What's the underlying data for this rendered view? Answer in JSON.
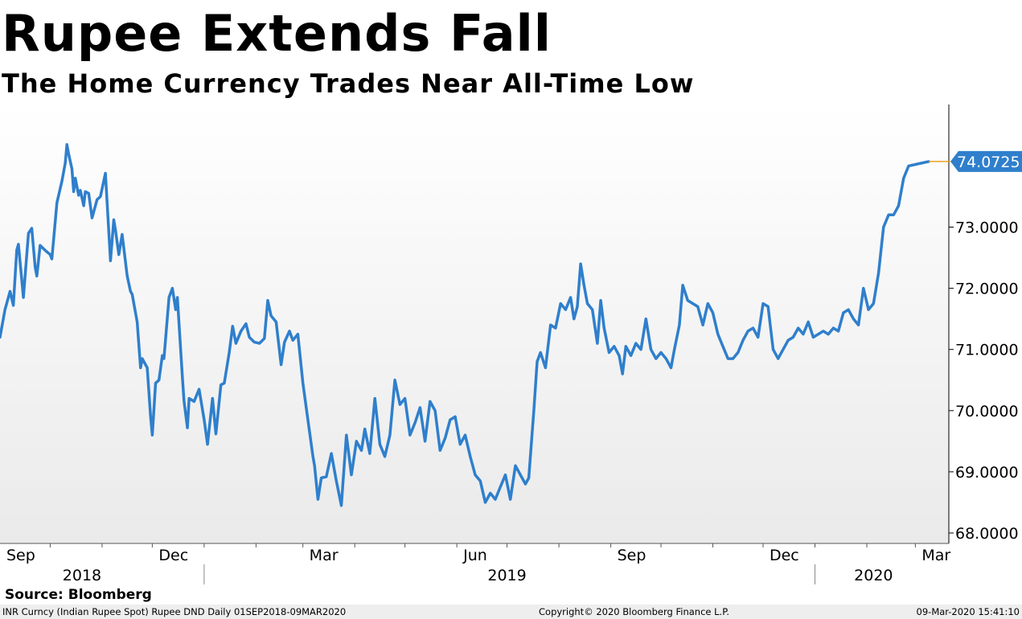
{
  "chart_data": {
    "type": "line",
    "title": "Rupee Extends Fall",
    "subtitle": "The Home Currency Trades Near All-Time Low",
    "ylim": [
      68.0,
      75.0
    ],
    "xlim": [
      "2018-09-01",
      "2020-03-09"
    ],
    "y_ticks": [
      "68.0000",
      "69.0000",
      "70.0000",
      "71.0000",
      "72.0000",
      "73.0000"
    ],
    "x_month_ticks": [
      {
        "date": "2018-09-01",
        "label": "Sep"
      },
      {
        "date": "2018-12-01",
        "label": "Dec"
      },
      {
        "date": "2019-03-01",
        "label": "Mar"
      },
      {
        "date": "2019-06-01",
        "label": "Jun"
      },
      {
        "date": "2019-09-01",
        "label": "Sep"
      },
      {
        "date": "2019-12-01",
        "label": "Dec"
      },
      {
        "date": "2020-03-01",
        "label": "Mar"
      }
    ],
    "year_labels": [
      {
        "label": "2018",
        "mid": "2018-10-20"
      },
      {
        "label": "2019",
        "mid": "2019-07-01"
      },
      {
        "label": "2020",
        "mid": "2020-02-05"
      }
    ],
    "year_separators": [
      "2019-01-01",
      "2020-01-01"
    ],
    "last_value": 74.0725,
    "last_value_label": "74.0725",
    "line_color": "#2f7fcc",
    "series": [
      {
        "points": [
          [
            "2018-09-01",
            71.2
          ],
          [
            "2018-09-04",
            71.65
          ],
          [
            "2018-09-07",
            71.95
          ],
          [
            "2018-09-09",
            71.72
          ],
          [
            "2018-09-11",
            72.62
          ],
          [
            "2018-09-12",
            72.72
          ],
          [
            "2018-09-15",
            71.85
          ],
          [
            "2018-09-18",
            72.9
          ],
          [
            "2018-09-20",
            72.98
          ],
          [
            "2018-09-22",
            72.35
          ],
          [
            "2018-09-23",
            72.2
          ],
          [
            "2018-09-25",
            72.7
          ],
          [
            "2018-09-28",
            72.62
          ],
          [
            "2018-10-01",
            72.55
          ],
          [
            "2018-10-02",
            72.48
          ],
          [
            "2018-10-05",
            73.4
          ],
          [
            "2018-10-08",
            73.75
          ],
          [
            "2018-10-10",
            74.05
          ],
          [
            "2018-10-11",
            74.35
          ],
          [
            "2018-10-12",
            74.2
          ],
          [
            "2018-10-14",
            73.95
          ],
          [
            "2018-10-15",
            73.58
          ],
          [
            "2018-10-16",
            73.8
          ],
          [
            "2018-10-18",
            73.52
          ],
          [
            "2018-10-19",
            73.6
          ],
          [
            "2018-10-21",
            73.35
          ],
          [
            "2018-10-22",
            73.58
          ],
          [
            "2018-10-24",
            73.55
          ],
          [
            "2018-10-26",
            73.15
          ],
          [
            "2018-10-29",
            73.45
          ],
          [
            "2018-10-31",
            73.5
          ],
          [
            "2018-11-03",
            73.88
          ],
          [
            "2018-11-06",
            72.45
          ],
          [
            "2018-11-08",
            73.12
          ],
          [
            "2018-11-09",
            72.95
          ],
          [
            "2018-11-11",
            72.55
          ],
          [
            "2018-11-13",
            72.88
          ],
          [
            "2018-11-16",
            72.2
          ],
          [
            "2018-11-18",
            71.95
          ],
          [
            "2018-11-19",
            71.9
          ],
          [
            "2018-11-22",
            71.45
          ],
          [
            "2018-11-24",
            70.7
          ],
          [
            "2018-11-25",
            70.85
          ],
          [
            "2018-11-28",
            70.7
          ],
          [
            "2018-11-30",
            69.9
          ],
          [
            "2018-12-01",
            69.6
          ],
          [
            "2018-12-03",
            70.45
          ],
          [
            "2018-12-05",
            70.5
          ],
          [
            "2018-12-07",
            70.9
          ],
          [
            "2018-12-08",
            70.85
          ],
          [
            "2018-12-11",
            71.85
          ],
          [
            "2018-12-13",
            72.0
          ],
          [
            "2018-12-15",
            71.65
          ],
          [
            "2018-12-16",
            71.85
          ],
          [
            "2018-12-19",
            70.55
          ],
          [
            "2018-12-20",
            70.15
          ],
          [
            "2018-12-22",
            69.72
          ],
          [
            "2018-12-23",
            70.2
          ],
          [
            "2018-12-26",
            70.15
          ],
          [
            "2018-12-29",
            70.35
          ],
          [
            "2019-01-01",
            69.85
          ],
          [
            "2019-01-03",
            69.45
          ],
          [
            "2019-01-06",
            70.2
          ],
          [
            "2019-01-08",
            69.62
          ],
          [
            "2019-01-11",
            70.42
          ],
          [
            "2019-01-13",
            70.45
          ],
          [
            "2019-01-16",
            70.95
          ],
          [
            "2019-01-18",
            71.38
          ],
          [
            "2019-01-20",
            71.1
          ],
          [
            "2019-01-23",
            71.3
          ],
          [
            "2019-01-26",
            71.42
          ],
          [
            "2019-01-28",
            71.2
          ],
          [
            "2019-01-31",
            71.12
          ],
          [
            "2019-02-03",
            71.1
          ],
          [
            "2019-02-06",
            71.18
          ],
          [
            "2019-02-08",
            71.8
          ],
          [
            "2019-02-10",
            71.55
          ],
          [
            "2019-02-13",
            71.45
          ],
          [
            "2019-02-16",
            70.75
          ],
          [
            "2019-02-18",
            71.12
          ],
          [
            "2019-02-21",
            71.3
          ],
          [
            "2019-02-23",
            71.15
          ],
          [
            "2019-02-26",
            71.25
          ],
          [
            "2019-03-01",
            70.45
          ],
          [
            "2019-03-04",
            69.85
          ],
          [
            "2019-03-07",
            69.25
          ],
          [
            "2019-03-08",
            69.1
          ],
          [
            "2019-03-10",
            68.55
          ],
          [
            "2019-03-12",
            68.9
          ],
          [
            "2019-03-15",
            68.92
          ],
          [
            "2019-03-18",
            69.3
          ],
          [
            "2019-03-21",
            68.85
          ],
          [
            "2019-03-24",
            68.45
          ],
          [
            "2019-03-27",
            69.6
          ],
          [
            "2019-03-30",
            68.95
          ],
          [
            "2019-04-02",
            69.5
          ],
          [
            "2019-04-05",
            69.35
          ],
          [
            "2019-04-07",
            69.7
          ],
          [
            "2019-04-10",
            69.3
          ],
          [
            "2019-04-13",
            70.2
          ],
          [
            "2019-04-16",
            69.45
          ],
          [
            "2019-04-19",
            69.25
          ],
          [
            "2019-04-22",
            69.6
          ],
          [
            "2019-04-25",
            70.5
          ],
          [
            "2019-04-28",
            70.1
          ],
          [
            "2019-05-01",
            70.2
          ],
          [
            "2019-05-04",
            69.6
          ],
          [
            "2019-05-07",
            69.8
          ],
          [
            "2019-05-10",
            70.05
          ],
          [
            "2019-05-13",
            69.5
          ],
          [
            "2019-05-16",
            70.15
          ],
          [
            "2019-05-19",
            70.0
          ],
          [
            "2019-05-22",
            69.35
          ],
          [
            "2019-05-25",
            69.55
          ],
          [
            "2019-05-28",
            69.85
          ],
          [
            "2019-05-31",
            69.9
          ],
          [
            "2019-06-03",
            69.45
          ],
          [
            "2019-06-06",
            69.6
          ],
          [
            "2019-06-09",
            69.25
          ],
          [
            "2019-06-12",
            68.95
          ],
          [
            "2019-06-15",
            68.85
          ],
          [
            "2019-06-18",
            68.5
          ],
          [
            "2019-06-21",
            68.65
          ],
          [
            "2019-06-24",
            68.55
          ],
          [
            "2019-06-27",
            68.75
          ],
          [
            "2019-06-30",
            68.95
          ],
          [
            "2019-07-03",
            68.55
          ],
          [
            "2019-07-06",
            69.1
          ],
          [
            "2019-07-09",
            68.95
          ],
          [
            "2019-07-12",
            68.8
          ],
          [
            "2019-07-14",
            68.9
          ],
          [
            "2019-07-17",
            70.0
          ],
          [
            "2019-07-19",
            70.8
          ],
          [
            "2019-07-21",
            70.95
          ],
          [
            "2019-07-24",
            70.7
          ],
          [
            "2019-07-27",
            71.4
          ],
          [
            "2019-07-30",
            71.35
          ],
          [
            "2019-08-02",
            71.75
          ],
          [
            "2019-08-05",
            71.65
          ],
          [
            "2019-08-08",
            71.85
          ],
          [
            "2019-08-10",
            71.5
          ],
          [
            "2019-08-12",
            71.7
          ],
          [
            "2019-08-14",
            72.4
          ],
          [
            "2019-08-16",
            72.05
          ],
          [
            "2019-08-18",
            71.75
          ],
          [
            "2019-08-21",
            71.65
          ],
          [
            "2019-08-24",
            71.1
          ],
          [
            "2019-08-26",
            71.8
          ],
          [
            "2019-08-28",
            71.35
          ],
          [
            "2019-08-31",
            70.95
          ],
          [
            "2019-09-03",
            71.05
          ],
          [
            "2019-09-06",
            70.9
          ],
          [
            "2019-09-08",
            70.6
          ],
          [
            "2019-09-10",
            71.05
          ],
          [
            "2019-09-13",
            70.9
          ],
          [
            "2019-09-16",
            71.1
          ],
          [
            "2019-09-19",
            71.0
          ],
          [
            "2019-09-22",
            71.5
          ],
          [
            "2019-09-25",
            71.0
          ],
          [
            "2019-09-28",
            70.85
          ],
          [
            "2019-10-01",
            70.95
          ],
          [
            "2019-10-04",
            70.85
          ],
          [
            "2019-10-07",
            70.7
          ],
          [
            "2019-10-09",
            71.0
          ],
          [
            "2019-10-12",
            71.4
          ],
          [
            "2019-10-14",
            72.05
          ],
          [
            "2019-10-17",
            71.8
          ],
          [
            "2019-10-20",
            71.75
          ],
          [
            "2019-10-23",
            71.7
          ],
          [
            "2019-10-26",
            71.4
          ],
          [
            "2019-10-29",
            71.75
          ],
          [
            "2019-11-01",
            71.6
          ],
          [
            "2019-11-04",
            71.25
          ],
          [
            "2019-11-07",
            71.05
          ],
          [
            "2019-11-10",
            70.85
          ],
          [
            "2019-11-13",
            70.85
          ],
          [
            "2019-11-16",
            70.95
          ],
          [
            "2019-11-19",
            71.15
          ],
          [
            "2019-11-22",
            71.3
          ],
          [
            "2019-11-25",
            71.35
          ],
          [
            "2019-11-28",
            71.2
          ],
          [
            "2019-12-01",
            71.75
          ],
          [
            "2019-12-04",
            71.7
          ],
          [
            "2019-12-07",
            71.0
          ],
          [
            "2019-12-10",
            70.85
          ],
          [
            "2019-12-13",
            71.0
          ],
          [
            "2019-12-16",
            71.15
          ],
          [
            "2019-12-19",
            71.2
          ],
          [
            "2019-12-22",
            71.35
          ],
          [
            "2019-12-25",
            71.25
          ],
          [
            "2019-12-28",
            71.45
          ],
          [
            "2019-12-31",
            71.2
          ],
          [
            "2020-01-03",
            71.25
          ],
          [
            "2020-01-06",
            71.3
          ],
          [
            "2020-01-09",
            71.25
          ],
          [
            "2020-01-12",
            71.35
          ],
          [
            "2020-01-15",
            71.3
          ],
          [
            "2020-01-18",
            71.6
          ],
          [
            "2020-01-21",
            71.65
          ],
          [
            "2020-01-24",
            71.5
          ],
          [
            "2020-01-27",
            71.4
          ],
          [
            "2020-01-30",
            72.0
          ],
          [
            "2020-02-02",
            71.65
          ],
          [
            "2020-02-05",
            71.75
          ],
          [
            "2020-02-08",
            72.25
          ],
          [
            "2020-02-11",
            73.0
          ],
          [
            "2020-02-14",
            73.2
          ],
          [
            "2020-02-17",
            73.2
          ],
          [
            "2020-02-20",
            73.35
          ],
          [
            "2020-02-23",
            73.8
          ],
          [
            "2020-02-26",
            74.0
          ],
          [
            "2020-03-09",
            74.0725
          ]
        ]
      }
    ]
  },
  "footer": {
    "source": "Source: Bloomberg",
    "left": "INR Curncy (Indian Rupee Spot) Rupee DND  Daily 01SEP2018-09MAR2020",
    "center": "Copyright© 2020 Bloomberg Finance L.P.",
    "right": "09-Mar-2020 15:41:10"
  }
}
